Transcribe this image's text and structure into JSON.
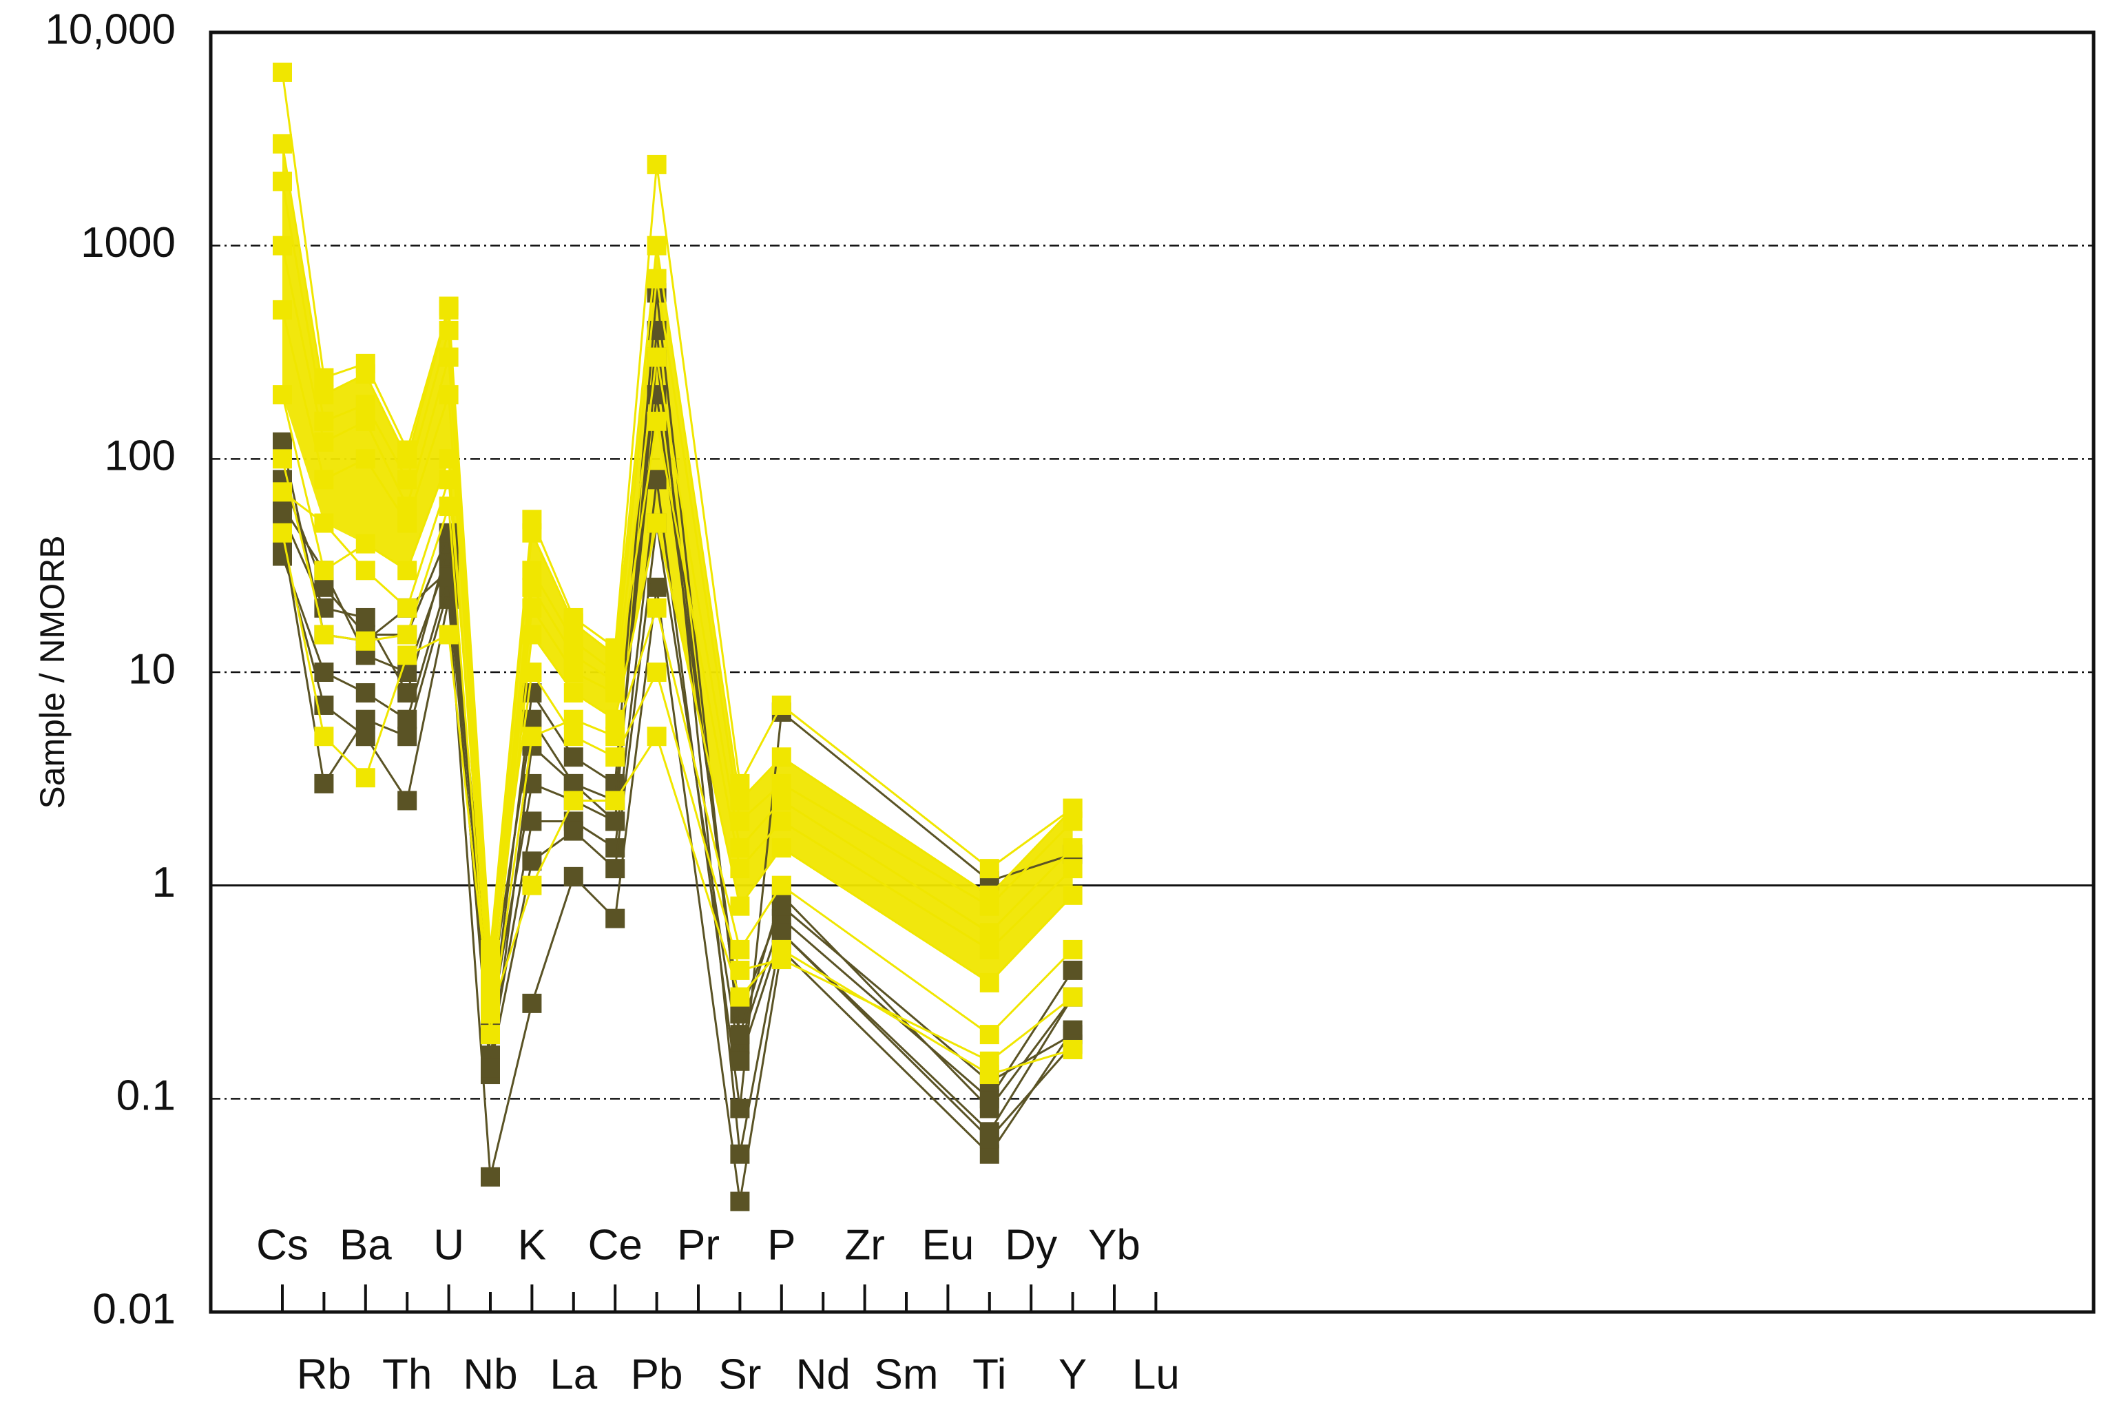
{
  "chart_data": {
    "type": "line",
    "title": "",
    "xlabel": "",
    "ylabel": "Sample / NMORB",
    "yscale": "log",
    "ylim": [
      0.01,
      10000
    ],
    "y_ticks": [
      {
        "value": 10000,
        "label": "10,000"
      },
      {
        "value": 1000,
        "label": "1000"
      },
      {
        "value": 100,
        "label": "100"
      },
      {
        "value": 10,
        "label": "10"
      },
      {
        "value": 1,
        "label": "1"
      },
      {
        "value": 0.1,
        "label": "0.1"
      },
      {
        "value": 0.01,
        "label": "0.01"
      }
    ],
    "reference_line": 1,
    "categories": [
      "Cs",
      "Rb",
      "Ba",
      "Th",
      "U",
      "Nb",
      "K",
      "La",
      "Ce",
      "Pb",
      "Pr",
      "Sr",
      "P",
      "Nd",
      "Zr",
      "Sm",
      "Eu",
      "Ti",
      "Dy",
      "Y",
      "Yb",
      "Lu"
    ],
    "colors": {
      "yellow": "#f0e600",
      "dark": "#5a5325",
      "axis": "#111111"
    },
    "series_groups": [
      {
        "name": "dark",
        "color": "#5a5325",
        "series": [
          {
            "name": "D1",
            "values": [
              38,
              7,
              5,
              2.5,
              22,
              0.043,
              0.28,
              1.1,
              0.7,
              25,
              null,
              0.033,
              0.5,
              null,
              null,
              null,
              null,
              0.055,
              null,
              0.21,
              null,
              null
            ]
          },
          {
            "name": "D2",
            "values": [
              120,
              15,
              14,
              20,
              30,
              0.13,
              4.5,
              3,
              2,
              400,
              null,
              0.055,
              0.6,
              null,
              null,
              null,
              null,
              0.07,
              null,
              0.3,
              null,
              null
            ]
          },
          {
            "name": "D3",
            "values": [
              60,
              30,
              12,
              10,
              35,
              0.2,
              8,
              4,
              3,
              600,
              null,
              0.18,
              0.7,
              null,
              null,
              null,
              null,
              0.1,
              null,
              0.4,
              null,
              null
            ]
          },
          {
            "name": "D4",
            "values": [
              45,
              3,
              6,
              5,
              25,
              0.16,
              2,
              2,
              1.5,
              80,
              null,
              0.09,
              6.5,
              null,
              null,
              null,
              null,
              1.05,
              null,
              1.4,
              null,
              null
            ]
          },
          {
            "name": "D5",
            "values": [
              55,
              20,
              18,
              8,
              40,
              0.3,
              6,
              3,
              2.5,
              200,
              null,
              0.25,
              0.8,
              null,
              null,
              null,
              null,
              0.12,
              null,
              0.2,
              null,
              null
            ]
          },
          {
            "name": "D6",
            "values": [
              35,
              10,
              8,
              6,
              28,
              0.14,
              1.3,
              1.8,
              1.2,
              50,
              null,
              0.15,
              0.6,
              null,
              null,
              null,
              null,
              0.065,
              null,
              0.18,
              null,
              null
            ]
          },
          {
            "name": "D7",
            "values": [
              80,
              25,
              15,
              15,
              45,
              0.22,
              3,
              2.5,
              2,
              300,
              null,
              0.2,
              0.9,
              null,
              null,
              null,
              null,
              0.09,
              null,
              0.3,
              null,
              null
            ]
          }
        ]
      },
      {
        "name": "yellow",
        "color": "#f0e600",
        "series": [
          {
            "name": "Y1",
            "values": [
              6500,
              240,
              280,
              110,
              520,
              0.5,
              52,
              18,
              13,
              2400,
              null,
              3,
              7,
              null,
              null,
              null,
              null,
              1.2,
              null,
              2.3,
              null,
              null
            ]
          },
          {
            "name": "Y2",
            "values": [
              45,
              5,
              3.2,
              12,
              15,
              0.25,
              1,
              2.5,
              2.5,
              5,
              null,
              0.3,
              0.5,
              null,
              null,
              null,
              null,
              0.13,
              null,
              0.17,
              null,
              null
            ]
          },
          {
            "name": "Y3",
            "values": [
              3000,
              200,
              250,
              100,
              500,
              0.45,
              45,
              17,
              12,
              1000,
              null,
              2.5,
              4,
              null,
              null,
              null,
              null,
              0.9,
              null,
              2.3,
              null,
              null
            ]
          },
          {
            "name": "Y4",
            "values": [
              2000,
              150,
              180,
              80,
              400,
              0.4,
              30,
              14,
              10,
              700,
              null,
              2,
              3,
              null,
              null,
              null,
              null,
              0.8,
              null,
              2.0,
              null,
              null
            ]
          },
          {
            "name": "Y5",
            "values": [
              1000,
              120,
              150,
              60,
              300,
              0.35,
              25,
              12,
              9,
              300,
              null,
              1.5,
              2.5,
              null,
              null,
              null,
              null,
              0.6,
              null,
              1.5,
              null,
              null
            ]
          },
          {
            "name": "Y6",
            "values": [
              500,
              80,
              100,
              50,
              200,
              0.3,
              20,
              10,
              8,
              150,
              null,
              1.2,
              2,
              null,
              null,
              null,
              null,
              0.5,
              null,
              1.2,
              null,
              null
            ]
          },
          {
            "name": "Y7",
            "values": [
              200,
              30,
              40,
              30,
              100,
              0.25,
              15,
              8,
              6,
              50,
              null,
              0.8,
              1.5,
              null,
              null,
              null,
              null,
              0.35,
              null,
              0.9,
              null,
              null
            ]
          },
          {
            "name": "Y8",
            "values": [
              100,
              15,
              14,
              15,
              60,
              0.2,
              5,
              6,
              5,
              20,
              null,
              0.5,
              1,
              null,
              null,
              null,
              null,
              0.2,
              null,
              0.5,
              null,
              null
            ]
          },
          {
            "name": "Y9",
            "values": [
              70,
              50,
              30,
              20,
              80,
              0.4,
              10,
              5,
              4,
              10,
              null,
              0.4,
              0.45,
              null,
              null,
              null,
              null,
              0.15,
              null,
              0.3,
              null,
              null
            ]
          }
        ]
      }
    ]
  }
}
